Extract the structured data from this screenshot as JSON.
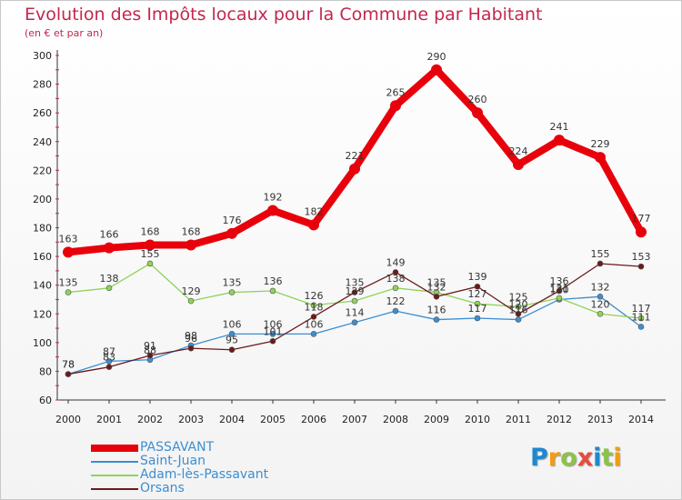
{
  "chart_data": {
    "type": "line",
    "title": "Evolution des Impôts locaux pour la Commune par Habitant",
    "subtitle": "(en € et par an)",
    "x": [
      "2000",
      "2001",
      "2002",
      "2003",
      "2004",
      "2005",
      "2006",
      "2007",
      "2008",
      "2009",
      "2010",
      "2011",
      "2012",
      "2013",
      "2014"
    ],
    "yticks": [
      60,
      80,
      100,
      120,
      140,
      160,
      180,
      200,
      220,
      240,
      260,
      280,
      300
    ],
    "ylim": [
      60,
      300
    ],
    "grid": false,
    "legend_position": "bottom-left",
    "series": [
      {
        "name": "PASSAVANT",
        "color": "#e8000b",
        "values": [
          163,
          166,
          168,
          168,
          176,
          192,
          182,
          221,
          265,
          290,
          260,
          224,
          241,
          229,
          177
        ]
      },
      {
        "name": "Saint-Juan",
        "color": "#3d8ed0",
        "values": [
          78,
          87,
          88,
          98,
          106,
          106,
          106,
          114,
          122,
          116,
          117,
          116,
          130,
          132,
          111
        ]
      },
      {
        "name": "Adam-lès-Passavant",
        "color": "#8fd35a",
        "values": [
          135,
          138,
          155,
          129,
          135,
          136,
          126,
          129,
          138,
          135,
          127,
          125,
          131,
          120,
          117
        ]
      },
      {
        "name": "Orsans",
        "color": "#6b1a1a",
        "values": [
          78,
          83,
          91,
          96,
          95,
          101,
          118,
          135,
          149,
          132,
          139,
          120,
          136,
          155,
          153
        ]
      }
    ]
  },
  "logo": {
    "text": "Proxiti",
    "letters": [
      "P",
      "r",
      "o",
      "x",
      "i",
      "t",
      "i"
    ],
    "colors": [
      "#1e88d0",
      "#f39c12",
      "#8bc34a",
      "#e74c3c",
      "#1e88d0",
      "#8bc34a",
      "#f39c12"
    ]
  }
}
